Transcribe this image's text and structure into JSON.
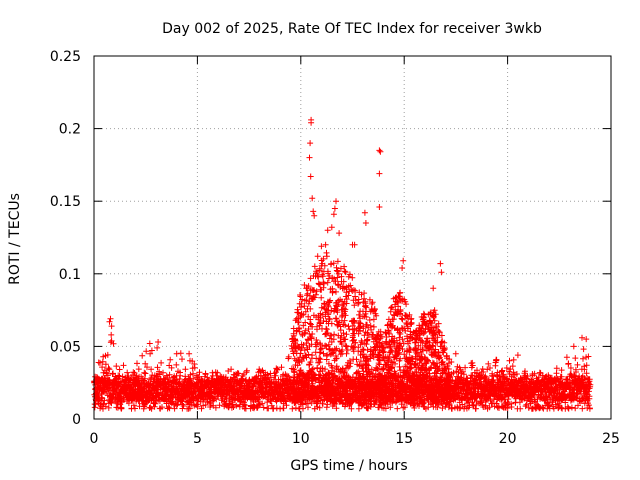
{
  "chart_data": {
    "type": "scatter",
    "title": "Day 002 of 2025, Rate Of TEC Index for receiver 3wkb",
    "xlabel": "GPS time / hours",
    "ylabel": "ROTI / TECUs",
    "xlim": [
      0,
      25
    ],
    "ylim": [
      0,
      0.25
    ],
    "xticks": [
      0,
      5,
      10,
      15,
      20,
      25
    ],
    "xtick_labels": [
      "0",
      "5",
      "10",
      "15",
      "20",
      "25"
    ],
    "yticks": [
      0,
      0.05,
      0.1,
      0.15,
      0.2,
      0.25
    ],
    "ytick_labels": [
      "0",
      "0.05",
      "0.1",
      "0.15",
      "0.2",
      "0.25"
    ],
    "grid": true,
    "marker": "+",
    "marker_color": "#ff0000",
    "point_count_estimate": 4000,
    "baseline_band": [
      0.007,
      0.035
    ],
    "highlight_points": [
      {
        "x": 10.5,
        "y": 0.206
      },
      {
        "x": 10.5,
        "y": 0.204
      },
      {
        "x": 10.45,
        "y": 0.19
      },
      {
        "x": 10.42,
        "y": 0.18
      },
      {
        "x": 10.48,
        "y": 0.167
      },
      {
        "x": 10.55,
        "y": 0.152
      },
      {
        "x": 10.6,
        "y": 0.143
      },
      {
        "x": 10.65,
        "y": 0.14
      },
      {
        "x": 11.7,
        "y": 0.15
      },
      {
        "x": 11.65,
        "y": 0.145
      },
      {
        "x": 11.6,
        "y": 0.141
      },
      {
        "x": 11.5,
        "y": 0.132
      },
      {
        "x": 11.3,
        "y": 0.13
      },
      {
        "x": 11.2,
        "y": 0.12
      },
      {
        "x": 11.85,
        "y": 0.128
      },
      {
        "x": 12.5,
        "y": 0.12
      },
      {
        "x": 12.6,
        "y": 0.12
      },
      {
        "x": 13.1,
        "y": 0.142
      },
      {
        "x": 13.15,
        "y": 0.135
      },
      {
        "x": 13.8,
        "y": 0.185
      },
      {
        "x": 13.85,
        "y": 0.184
      },
      {
        "x": 13.8,
        "y": 0.169
      },
      {
        "x": 13.8,
        "y": 0.146
      },
      {
        "x": 14.95,
        "y": 0.109
      },
      {
        "x": 14.9,
        "y": 0.104
      },
      {
        "x": 16.75,
        "y": 0.107
      },
      {
        "x": 16.8,
        "y": 0.101
      },
      {
        "x": 16.4,
        "y": 0.09
      },
      {
        "x": 9.8,
        "y": 0.069
      },
      {
        "x": 9.75,
        "y": 0.068
      },
      {
        "x": 0.8,
        "y": 0.069
      },
      {
        "x": 0.75,
        "y": 0.067
      },
      {
        "x": 0.85,
        "y": 0.064
      },
      {
        "x": 2.7,
        "y": 0.052
      },
      {
        "x": 3.1,
        "y": 0.053
      },
      {
        "x": 3.05,
        "y": 0.049
      },
      {
        "x": 23.6,
        "y": 0.056
      },
      {
        "x": 23.8,
        "y": 0.055
      },
      {
        "x": 23.2,
        "y": 0.05
      },
      {
        "x": 20.5,
        "y": 0.044
      },
      {
        "x": 4.6,
        "y": 0.045
      },
      {
        "x": 4.0,
        "y": 0.045
      }
    ],
    "envelope_max": [
      {
        "x": 0.0,
        "y": 0.035
      },
      {
        "x": 0.7,
        "y": 0.05
      },
      {
        "x": 0.85,
        "y": 0.07
      },
      {
        "x": 1.0,
        "y": 0.045
      },
      {
        "x": 2.0,
        "y": 0.04
      },
      {
        "x": 2.8,
        "y": 0.053
      },
      {
        "x": 3.3,
        "y": 0.042
      },
      {
        "x": 4.0,
        "y": 0.045
      },
      {
        "x": 4.6,
        "y": 0.046
      },
      {
        "x": 5.0,
        "y": 0.033
      },
      {
        "x": 7.0,
        "y": 0.035
      },
      {
        "x": 9.0,
        "y": 0.035
      },
      {
        "x": 9.5,
        "y": 0.05
      },
      {
        "x": 10.0,
        "y": 0.09
      },
      {
        "x": 10.5,
        "y": 0.1
      },
      {
        "x": 11.0,
        "y": 0.12
      },
      {
        "x": 11.7,
        "y": 0.11
      },
      {
        "x": 12.5,
        "y": 0.1
      },
      {
        "x": 13.0,
        "y": 0.09
      },
      {
        "x": 13.5,
        "y": 0.08
      },
      {
        "x": 14.0,
        "y": 0.055
      },
      {
        "x": 14.5,
        "y": 0.085
      },
      {
        "x": 15.0,
        "y": 0.09
      },
      {
        "x": 15.5,
        "y": 0.06
      },
      {
        "x": 16.0,
        "y": 0.075
      },
      {
        "x": 16.5,
        "y": 0.075
      },
      {
        "x": 17.0,
        "y": 0.05
      },
      {
        "x": 18.0,
        "y": 0.04
      },
      {
        "x": 19.0,
        "y": 0.04
      },
      {
        "x": 20.5,
        "y": 0.043
      },
      {
        "x": 21.0,
        "y": 0.035
      },
      {
        "x": 22.0,
        "y": 0.03
      },
      {
        "x": 23.0,
        "y": 0.045
      },
      {
        "x": 23.7,
        "y": 0.055
      },
      {
        "x": 24.0,
        "y": 0.05
      }
    ]
  }
}
